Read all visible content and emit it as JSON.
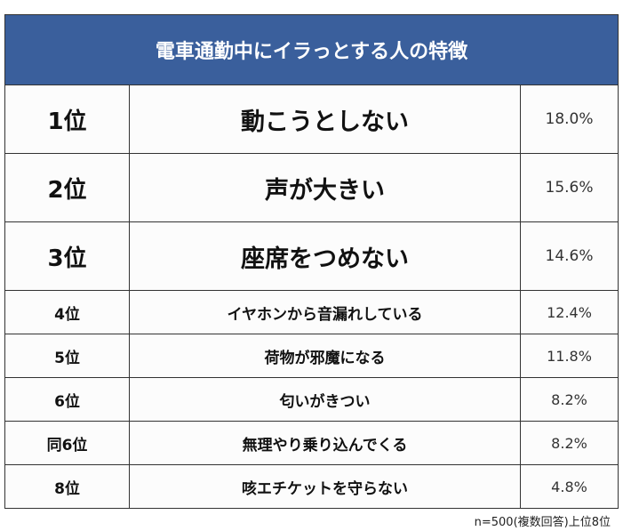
{
  "title": "電車通勤中にイラっとする人の特徴",
  "rows": [
    {
      "rank": "1位",
      "item": "動こうとしない",
      "percent": "18.0%"
    },
    {
      "rank": "2位",
      "item": "声が大きい",
      "percent": "15.6%"
    },
    {
      "rank": "3位",
      "item": "座席をつめない",
      "percent": "14.6%"
    },
    {
      "rank": "4位",
      "item": "イヤホンから音漏れしている",
      "percent": "12.4%"
    },
    {
      "rank": "5位",
      "item": "荷物が邪魔になる",
      "percent": "11.8%"
    },
    {
      "rank": "6位",
      "item": "匂いがきつい",
      "percent": "8.2%"
    },
    {
      "rank": "同6位",
      "item": "無理やり乗り込んでくる",
      "percent": "8.2%"
    },
    {
      "rank": "8位",
      "item": "咳エチケットを守らない",
      "percent": "4.8%"
    }
  ],
  "footnote": "n=500(複数回答)上位8位",
  "colors": {
    "header": "#3a5f9c"
  }
}
